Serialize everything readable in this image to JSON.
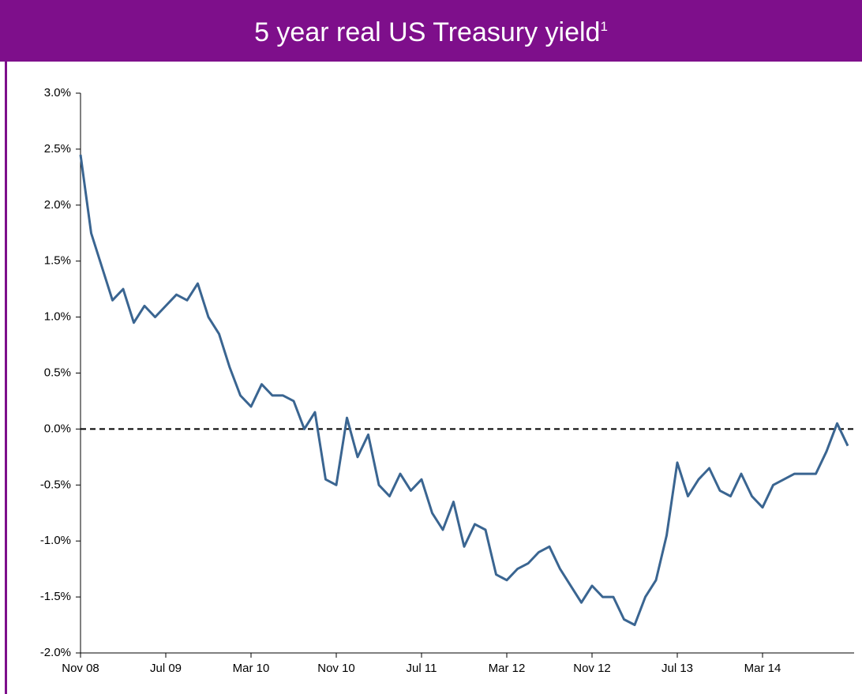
{
  "chart_data": {
    "type": "line",
    "title": "5 year real US Treasury yield",
    "title_superscript": "1",
    "categories": [
      "Nov 08",
      null,
      null,
      null,
      null,
      null,
      null,
      null,
      "Jul 09",
      null,
      null,
      null,
      null,
      null,
      null,
      null,
      "Mar 10",
      null,
      null,
      null,
      null,
      null,
      null,
      null,
      "Nov 10",
      null,
      null,
      null,
      null,
      null,
      null,
      null,
      "Jul 11",
      null,
      null,
      null,
      null,
      null,
      null,
      null,
      "Mar 12",
      null,
      null,
      null,
      null,
      null,
      null,
      null,
      "Nov 12",
      null,
      null,
      null,
      null,
      null,
      null,
      null,
      "Jul 13",
      null,
      null,
      null,
      null,
      null,
      null,
      null,
      "Mar 14",
      null,
      null,
      null,
      null,
      null,
      null,
      null,
      null
    ],
    "values": [
      2.45,
      1.75,
      1.45,
      1.15,
      1.25,
      0.95,
      1.1,
      1.0,
      1.1,
      1.2,
      1.15,
      1.3,
      1.0,
      0.85,
      0.55,
      0.3,
      0.2,
      0.4,
      0.3,
      0.3,
      0.25,
      0.0,
      0.15,
      -0.45,
      -0.5,
      0.1,
      -0.25,
      -0.05,
      -0.5,
      -0.6,
      -0.4,
      -0.55,
      -0.45,
      -0.75,
      -0.9,
      -0.65,
      -1.05,
      -0.85,
      -0.9,
      -1.3,
      -1.35,
      -1.25,
      -1.2,
      -1.1,
      -1.05,
      -1.25,
      -1.4,
      -1.55,
      -1.4,
      -1.5,
      -1.5,
      -1.7,
      -1.75,
      -1.5,
      -1.35,
      -0.95,
      -0.3,
      -0.6,
      -0.45,
      -0.35,
      -0.55,
      -0.6,
      -0.4,
      -0.6,
      -0.7,
      -0.5,
      -0.45,
      -0.4,
      -0.4,
      -0.4,
      -0.2,
      0.05,
      -0.15
    ],
    "color": "#3a6591",
    "ylim": [
      -2,
      3
    ],
    "yticks": [
      {
        "value": -2,
        "label": "-2.0%"
      },
      {
        "value": -1.5,
        "label": "-1.5%"
      },
      {
        "value": -1,
        "label": "-1.0%"
      },
      {
        "value": -0.5,
        "label": "-0.5%"
      },
      {
        "value": 0,
        "label": "0.0%"
      },
      {
        "value": 0.5,
        "label": "0.5%"
      },
      {
        "value": 1,
        "label": "1.0%"
      },
      {
        "value": 1.5,
        "label": "1.5%"
      },
      {
        "value": 2,
        "label": "2.0%"
      },
      {
        "value": 2.5,
        "label": "2.5%"
      },
      {
        "value": 3,
        "label": "3.0%"
      }
    ],
    "hline": 0,
    "grid": false
  }
}
